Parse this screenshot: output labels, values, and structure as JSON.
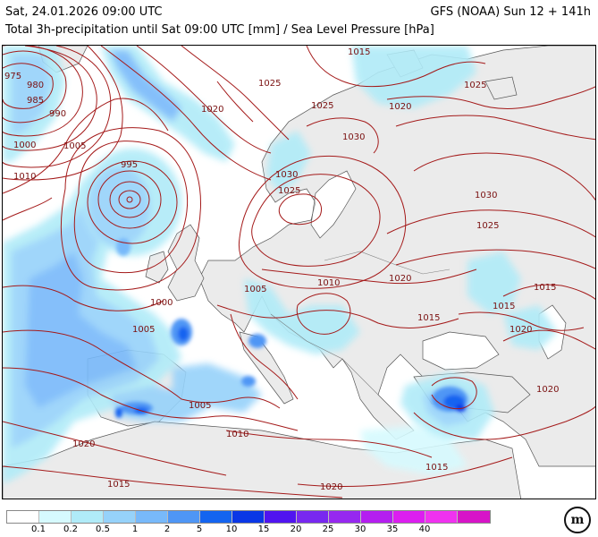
{
  "header": {
    "valid_time": "Sat, 24.01.2026 09:00 UTC",
    "model_run": "GFS (NOAA) Sun 12 + 141h",
    "parameter": "Total 3h-precipitation until Sat 09:00 UTC [mm] / Sea Level Pressure [hPa]"
  },
  "isobar_labels": [
    "975",
    "980",
    "985",
    "990",
    "1000",
    "1005",
    "1010",
    "995",
    "1020",
    "1025",
    "1030",
    "1025",
    "1030",
    "1015",
    "1025",
    "1020",
    "1025",
    "1030",
    "1025",
    "1000",
    "1005",
    "1005",
    "1010",
    "1020",
    "1015",
    "1015",
    "1020",
    "1015",
    "1020",
    "1005",
    "1010",
    "1020",
    "1015",
    "1020",
    "1015"
  ],
  "legend": {
    "colors": [
      "#ffffff",
      "#d6fafe",
      "#b0ebf8",
      "#96d2fa",
      "#78b9fa",
      "#4f96f5",
      "#1464f0",
      "#0a37e6",
      "#5014f0",
      "#7828f0",
      "#9628f0",
      "#b41ef0",
      "#dc1ef0",
      "#f032f0",
      "#d714c8"
    ],
    "ticks": [
      "0.1",
      "0.2",
      "0.5",
      "1",
      "2",
      "5",
      "10",
      "15",
      "20",
      "25",
      "30",
      "35",
      "40"
    ]
  },
  "logo": {
    "text": "m",
    "icon": "meteociel-logo"
  }
}
